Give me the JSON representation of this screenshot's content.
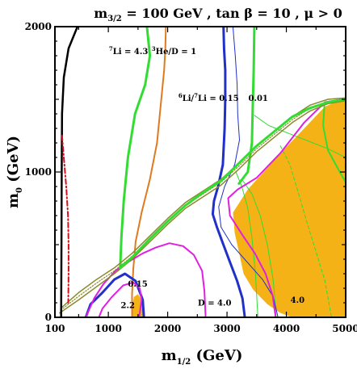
{
  "chart_data": {
    "type": "contour",
    "title": "m3/2 = 100 GeV , tan β = 10 ,  μ > 0",
    "xlabel": "m1/2 (GeV)",
    "ylabel": "m0 (GeV)",
    "xlim": [
      100,
      5000
    ],
    "ylim": [
      0,
      2000
    ],
    "xticks": [
      "100",
      "1000",
      "2000",
      "3000",
      "4000",
      "5000"
    ],
    "yticks": [
      "0",
      "1000",
      "2000"
    ],
    "colors": {
      "excluded_region": "#f5b216",
      "li7": "#32dc32",
      "he3d": "#e07a20",
      "li6li7": "#2030c8",
      "deuterium": "#e020e0",
      "lower_bound": "#000000",
      "dashdot": "#d01020",
      "coannihilation": "#8a8a2a"
    },
    "annotations": [
      {
        "text": "7Li = 4.3",
        "sup": "7",
        "main": "Li = 4.3",
        "x": 1010,
        "y": 1810
      },
      {
        "text": "3He/D = 1",
        "sup": "3",
        "main": "He/D = 1",
        "x": 1730,
        "y": 1810
      },
      {
        "text": "6Li/7Li = 0.15",
        "sup1": "6",
        "mid": "Li/",
        "sup2": "7",
        "main": "Li = 0.15",
        "x": 2180,
        "y": 1490
      },
      {
        "text": "0.01",
        "x": 3360,
        "y": 1490
      },
      {
        "text": "0.15",
        "x": 1330,
        "y": 210
      },
      {
        "text": "2.2",
        "x": 1210,
        "y": 65
      },
      {
        "text": "D = 4.0",
        "x": 2510,
        "y": 80
      },
      {
        "text": "4.0",
        "x": 4070,
        "y": 100
      }
    ],
    "series": [
      {
        "name": "excluded (orange)",
        "color": "#f5b216",
        "fill": true,
        "points": [
          [
            4100,
            0
          ],
          [
            5000,
            0
          ],
          [
            5000,
            1510
          ],
          [
            4650,
            1450
          ],
          [
            3950,
            1150
          ],
          [
            3350,
            880
          ],
          [
            3100,
            720
          ],
          [
            3130,
            580
          ],
          [
            3200,
            450
          ],
          [
            3280,
            300
          ],
          [
            3440,
            190
          ],
          [
            3680,
            90
          ],
          [
            3900,
            30
          ],
          [
            4100,
            0
          ]
        ]
      },
      {
        "name": "excluded small (orange)",
        "color": "#f5b216",
        "fill": true,
        "points": [
          [
            1400,
            0
          ],
          [
            1600,
            0
          ],
          [
            1600,
            90
          ],
          [
            1500,
            160
          ],
          [
            1430,
            140
          ],
          [
            1400,
            60
          ],
          [
            1400,
            0
          ]
        ]
      },
      {
        "name": "7Li = 4.3 left (green)",
        "color": "#32dc32",
        "width": 3,
        "points": [
          [
            1650,
            2000
          ],
          [
            1700,
            1800
          ],
          [
            1620,
            1600
          ],
          [
            1450,
            1400
          ],
          [
            1330,
            1100
          ],
          [
            1260,
            800
          ],
          [
            1220,
            550
          ],
          [
            1200,
            340
          ]
        ]
      },
      {
        "name": "7Li = 4.3 right (green)",
        "color": "#32dc32",
        "width": 3,
        "points": [
          [
            3460,
            2000
          ],
          [
            3450,
            1700
          ],
          [
            3430,
            1400
          ],
          [
            3420,
            1200
          ],
          [
            3350,
            1000
          ],
          [
            3200,
            920
          ]
        ]
      },
      {
        "name": "7Li band thin right 1 (green)",
        "color": "#32dc32",
        "width": 1,
        "points": [
          [
            3150,
            1000
          ],
          [
            3250,
            900
          ],
          [
            3350,
            750
          ],
          [
            3420,
            550
          ],
          [
            3480,
            300
          ],
          [
            3520,
            0
          ]
        ]
      },
      {
        "name": "7Li band thin right 2 (green)",
        "color": "#32dc32",
        "width": 1,
        "points": [
          [
            3250,
            950
          ],
          [
            3420,
            850
          ],
          [
            3560,
            700
          ],
          [
            3680,
            500
          ],
          [
            3780,
            250
          ],
          [
            3830,
            0
          ]
        ]
      },
      {
        "name": "7Li thin top (green)",
        "color": "#32dc32",
        "width": 1,
        "points": [
          [
            3460,
            1390
          ],
          [
            3700,
            1320
          ],
          [
            4200,
            1240
          ],
          [
            4700,
            1160
          ],
          [
            5000,
            1100
          ]
        ]
      },
      {
        "name": "7Li inside orange (green)",
        "color": "#32dc32",
        "width": 2,
        "points": [
          [
            4640,
            1450
          ],
          [
            4620,
            1320
          ],
          [
            4700,
            1150
          ],
          [
            4900,
            1000
          ],
          [
            5000,
            930
          ]
        ]
      },
      {
        "name": "7Li inside orange dashed (green)",
        "color": "#32dc32",
        "width": 1,
        "dash": "4,3",
        "points": [
          [
            3900,
            1180
          ],
          [
            4060,
            1050
          ],
          [
            4200,
            860
          ],
          [
            4350,
            650
          ],
          [
            4500,
            450
          ],
          [
            4650,
            250
          ],
          [
            4760,
            0
          ]
        ]
      },
      {
        "name": "3He/D = 1 (orange line)",
        "color": "#e07a20",
        "width": 2,
        "points": [
          [
            1970,
            2000
          ],
          [
            1960,
            1850
          ],
          [
            1940,
            1700
          ],
          [
            1880,
            1450
          ],
          [
            1820,
            1200
          ],
          [
            1700,
            950
          ],
          [
            1560,
            720
          ],
          [
            1460,
            520
          ],
          [
            1420,
            330
          ],
          [
            1400,
            160
          ],
          [
            1400,
            0
          ]
        ]
      },
      {
        "name": "6Li/7Li = 0.15 (blue)",
        "color": "#2030c8",
        "width": 3,
        "points": [
          [
            2940,
            2000
          ],
          [
            2950,
            1850
          ],
          [
            2970,
            1700
          ],
          [
            2970,
            1500
          ],
          [
            2960,
            1300
          ],
          [
            2930,
            1050
          ],
          [
            2850,
            900
          ],
          [
            2780,
            800
          ],
          [
            2760,
            710
          ],
          [
            2830,
            620
          ],
          [
            2930,
            510
          ],
          [
            3050,
            380
          ],
          [
            3170,
            250
          ],
          [
            3260,
            130
          ],
          [
            3300,
            0
          ]
        ]
      },
      {
        "name": "6Li/7Li = 0.15 loop (blue)",
        "color": "#2030c8",
        "width": 3,
        "points": [
          [
            620,
            0
          ],
          [
            700,
            90
          ],
          [
            900,
            170
          ],
          [
            1100,
            260
          ],
          [
            1280,
            300
          ],
          [
            1460,
            250
          ],
          [
            1580,
            120
          ],
          [
            1600,
            0
          ]
        ]
      },
      {
        "name": "6Li/7Li = 0.01 (blue)",
        "color": "#2030c8",
        "width": 1,
        "points": [
          [
            3100,
            2000
          ],
          [
            3140,
            1800
          ],
          [
            3170,
            1600
          ],
          [
            3180,
            1400
          ],
          [
            3210,
            1220
          ],
          [
            3130,
            1050
          ],
          [
            2960,
            900
          ],
          [
            2860,
            760
          ],
          [
            2900,
            620
          ],
          [
            3080,
            500
          ],
          [
            3340,
            380
          ],
          [
            3600,
            260
          ],
          [
            3780,
            140
          ],
          [
            3860,
            0
          ]
        ]
      },
      {
        "name": "D = 4.0 left (magenta)",
        "color": "#e020e0",
        "width": 2,
        "points": [
          [
            620,
            0
          ],
          [
            760,
            130
          ],
          [
            920,
            230
          ],
          [
            1120,
            320
          ],
          [
            1330,
            380
          ],
          [
            1580,
            440
          ],
          [
            1800,
            480
          ],
          [
            2030,
            510
          ],
          [
            2260,
            490
          ],
          [
            2440,
            430
          ],
          [
            2580,
            320
          ],
          [
            2620,
            180
          ],
          [
            2640,
            0
          ]
        ]
      },
      {
        "name": "D = 4.0 right (magenta)",
        "color": "#e020e0",
        "width": 2,
        "points": [
          [
            4950,
            1500
          ],
          [
            4650,
            1480
          ],
          [
            4300,
            1340
          ],
          [
            3900,
            1130
          ],
          [
            3500,
            960
          ],
          [
            3180,
            880
          ],
          [
            3020,
            820
          ],
          [
            3050,
            700
          ],
          [
            3270,
            560
          ],
          [
            3470,
            440
          ],
          [
            3650,
            300
          ],
          [
            3770,
            150
          ],
          [
            3820,
            0
          ]
        ]
      },
      {
        "name": "D small loop (magenta)",
        "color": "#e020e0",
        "width": 2,
        "points": [
          [
            840,
            0
          ],
          [
            900,
            60
          ],
          [
            1060,
            140
          ],
          [
            1250,
            220
          ],
          [
            1420,
            240
          ],
          [
            1530,
            200
          ],
          [
            1560,
            120
          ],
          [
            1520,
            0
          ]
        ]
      },
      {
        "name": "coannihilation strip upper (olive)",
        "color": "#8a8a2a",
        "width": 1.5,
        "points": [
          [
            220,
            70
          ],
          [
            500,
            170
          ],
          [
            800,
            260
          ],
          [
            1100,
            340
          ],
          [
            1400,
            440
          ],
          [
            1700,
            560
          ],
          [
            2000,
            680
          ],
          [
            2300,
            790
          ],
          [
            2600,
            870
          ],
          [
            2900,
            950
          ],
          [
            3200,
            1060
          ],
          [
            3500,
            1180
          ],
          [
            3800,
            1280
          ],
          [
            4100,
            1380
          ],
          [
            4400,
            1460
          ],
          [
            4700,
            1500
          ],
          [
            5000,
            1510
          ]
        ]
      },
      {
        "name": "coannihilation strip lower (olive)",
        "color": "#8a8a2a",
        "width": 1.5,
        "points": [
          [
            180,
            30
          ],
          [
            500,
            120
          ],
          [
            800,
            210
          ],
          [
            1100,
            300
          ],
          [
            1400,
            400
          ],
          [
            1700,
            520
          ],
          [
            2000,
            640
          ],
          [
            2300,
            750
          ],
          [
            2600,
            830
          ],
          [
            2900,
            910
          ],
          [
            3200,
            1020
          ],
          [
            3500,
            1140
          ],
          [
            3800,
            1240
          ],
          [
            4100,
            1340
          ],
          [
            4400,
            1420
          ],
          [
            4700,
            1470
          ],
          [
            5000,
            1490
          ]
        ]
      },
      {
        "name": "coannihilation dotted (olive)",
        "color": "#8a8a2a",
        "width": 1.2,
        "dash": "1.5,2",
        "points": [
          [
            200,
            50
          ],
          [
            500,
            145
          ],
          [
            800,
            235
          ],
          [
            1100,
            320
          ],
          [
            1400,
            420
          ],
          [
            1700,
            540
          ],
          [
            2000,
            660
          ],
          [
            2300,
            770
          ],
          [
            2600,
            850
          ],
          [
            2900,
            930
          ],
          [
            3200,
            1040
          ],
          [
            3500,
            1160
          ],
          [
            3800,
            1260
          ],
          [
            4100,
            1360
          ],
          [
            4400,
            1440
          ],
          [
            4700,
            1485
          ],
          [
            5000,
            1500
          ]
        ]
      },
      {
        "name": "green strip lower bound (green)",
        "color": "#32dc32",
        "width": 3,
        "points": [
          [
            1200,
            340
          ],
          [
            1420,
            420
          ],
          [
            1700,
            540
          ],
          [
            2000,
            660
          ],
          [
            2300,
            770
          ],
          [
            2600,
            860
          ],
          [
            2900,
            940
          ],
          [
            3200,
            1060
          ],
          [
            3500,
            1180
          ],
          [
            3800,
            1280
          ],
          [
            4100,
            1380
          ],
          [
            4400,
            1440
          ],
          [
            4700,
            1480
          ],
          [
            5000,
            1500
          ]
        ]
      },
      {
        "name": "lower bound m1/2 (black)",
        "color": "#000000",
        "width": 2.5,
        "points": [
          [
            480,
            2000
          ],
          [
            330,
            1850
          ],
          [
            250,
            1650
          ],
          [
            220,
            1400
          ],
          [
            215,
            1000
          ],
          [
            210,
            500
          ],
          [
            205,
            0
          ]
        ]
      },
      {
        "name": "dash-dot (red)",
        "color": "#d01020",
        "width": 2,
        "dash": "6,3,1.5,3",
        "points": [
          [
            220,
            1250
          ],
          [
            250,
            1100
          ],
          [
            290,
            900
          ],
          [
            320,
            700
          ],
          [
            330,
            500
          ],
          [
            330,
            300
          ],
          [
            325,
            100
          ]
        ]
      }
    ]
  }
}
